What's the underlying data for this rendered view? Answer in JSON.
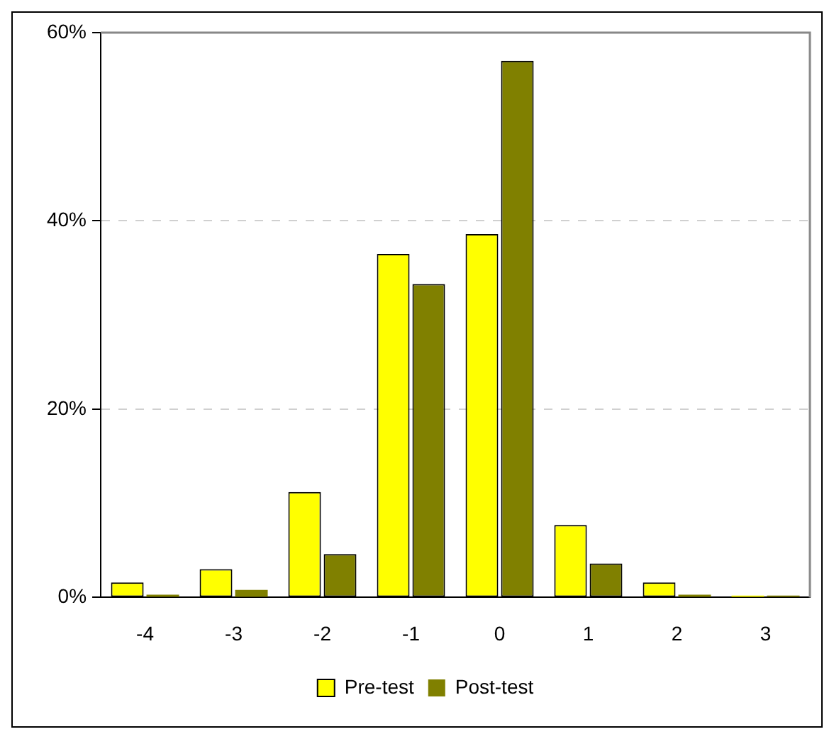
{
  "chart_data": {
    "type": "bar",
    "categories": [
      "-4",
      "-3",
      "-2",
      "-1",
      "0",
      "1",
      "2",
      "3"
    ],
    "series": [
      {
        "name": "Pre-test",
        "color": "#ffff00",
        "values": [
          1.6,
          3.0,
          11.2,
          36.5,
          38.6,
          7.7,
          1.6,
          0.2
        ]
      },
      {
        "name": "Post-test",
        "color": "#808000",
        "values": [
          0.3,
          0.8,
          4.6,
          33.3,
          57,
          3.6,
          0.3,
          0.2
        ]
      }
    ],
    "ylim": [
      0,
      60
    ],
    "yticks": [
      {
        "value": 0,
        "label": "0%"
      },
      {
        "value": 20,
        "label": "20%"
      },
      {
        "value": 40,
        "label": "40%"
      },
      {
        "value": 60,
        "label": "60%"
      }
    ],
    "grid": "y",
    "legend": "bottom"
  }
}
